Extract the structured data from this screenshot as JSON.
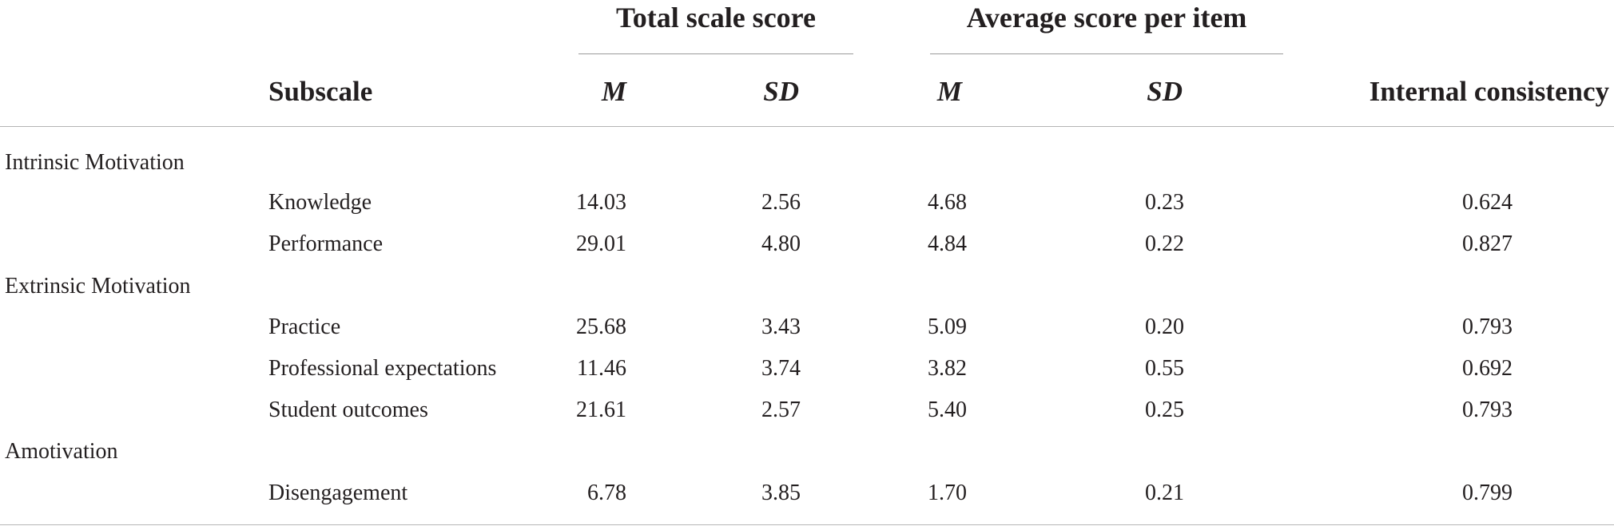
{
  "table": {
    "group_headers": {
      "total_scale_score": "Total scale score",
      "average_score_per_item": "Average score per item"
    },
    "column_headers": {
      "subscale": "Subscale",
      "total_m": "M",
      "total_sd": "SD",
      "average_m": "M",
      "average_sd": "SD",
      "internal_consistency": "Internal consistency"
    },
    "sections": [
      {
        "label": "Intrinsic Motivation",
        "rows": [
          {
            "subscale": "Knowledge",
            "total_m": "14.03",
            "total_sd": "2.56",
            "average_m": "4.68",
            "average_sd": "0.23",
            "internal_consistency": "0.624"
          },
          {
            "subscale": "Performance",
            "total_m": "29.01",
            "total_sd": "4.80",
            "average_m": "4.84",
            "average_sd": "0.22",
            "internal_consistency": "0.827"
          }
        ]
      },
      {
        "label": "Extrinsic Motivation",
        "rows": [
          {
            "subscale": "Practice",
            "total_m": "25.68",
            "total_sd": "3.43",
            "average_m": "5.09",
            "average_sd": "0.20",
            "internal_consistency": "0.793"
          },
          {
            "subscale": "Professional expectations",
            "total_m": "11.46",
            "total_sd": "3.74",
            "average_m": "3.82",
            "average_sd": "0.55",
            "internal_consistency": "0.692"
          },
          {
            "subscale": "Student outcomes",
            "total_m": "21.61",
            "total_sd": "2.57",
            "average_m": "5.40",
            "average_sd": "0.25",
            "internal_consistency": "0.793"
          }
        ]
      },
      {
        "label": "Amotivation",
        "rows": [
          {
            "subscale": "Disengagement",
            "total_m": "6.78",
            "total_sd": "3.85",
            "average_m": "1.70",
            "average_sd": "0.21",
            "internal_consistency": "0.799"
          }
        ]
      }
    ]
  }
}
